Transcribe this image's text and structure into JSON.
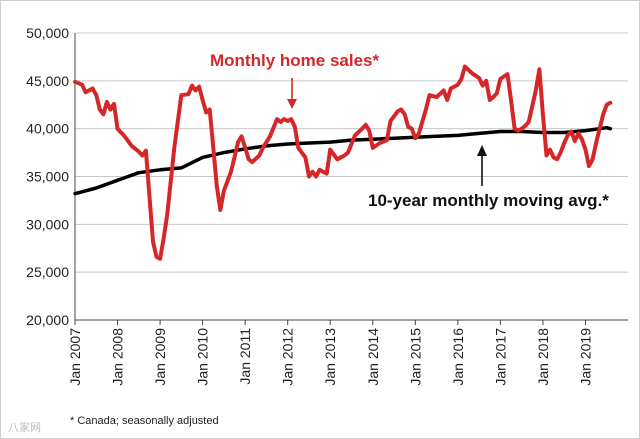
{
  "chart_data": {
    "type": "line",
    "ylim": [
      20000,
      50000
    ],
    "y_ticks": [
      20000,
      25000,
      30000,
      35000,
      40000,
      45000,
      50000
    ],
    "y_tick_labels": [
      "20,000",
      "25,000",
      "30,000",
      "35,000",
      "40,000",
      "45,000",
      "50,000"
    ],
    "x_ticks": [
      "Jan 2007",
      "Jan 2008",
      "Jan 2009",
      "Jan 2010",
      "Jan 2011",
      "Jan 2012",
      "Jan 2013",
      "Jan 2014",
      "Jan 2015",
      "Jan 2016",
      "Jan 2017",
      "Jan 2018",
      "Jan 2019"
    ],
    "grid": "horizontal",
    "series": [
      {
        "name": "Monthly home sales*",
        "color": "#d62728",
        "points": [
          [
            "2007-01",
            44900
          ],
          [
            "2007-03",
            44600
          ],
          [
            "2007-04",
            43800
          ],
          [
            "2007-06",
            44200
          ],
          [
            "2007-07",
            43500
          ],
          [
            "2007-08",
            42000
          ],
          [
            "2007-09",
            41500
          ],
          [
            "2007-10",
            42800
          ],
          [
            "2007-11",
            42000
          ],
          [
            "2007-12",
            42600
          ],
          [
            "2008-01",
            40000
          ],
          [
            "2008-03",
            39200
          ],
          [
            "2008-05",
            38200
          ],
          [
            "2008-07",
            37600
          ],
          [
            "2008-08",
            37200
          ],
          [
            "2008-09",
            37700
          ],
          [
            "2008-10",
            33000
          ],
          [
            "2008-11",
            28200
          ],
          [
            "2008-12",
            26600
          ],
          [
            "2009-01",
            26400
          ],
          [
            "2009-02",
            28500
          ],
          [
            "2009-03",
            31000
          ],
          [
            "2009-05",
            38000
          ],
          [
            "2009-07",
            43500
          ],
          [
            "2009-09",
            43600
          ],
          [
            "2009-10",
            44500
          ],
          [
            "2009-11",
            44000
          ],
          [
            "2009-12",
            44400
          ],
          [
            "2010-01",
            43000
          ],
          [
            "2010-02",
            41700
          ],
          [
            "2010-03",
            42000
          ],
          [
            "2010-04",
            38000
          ],
          [
            "2010-05",
            34000
          ],
          [
            "2010-06",
            31500
          ],
          [
            "2010-07",
            33500
          ],
          [
            "2010-09",
            35500
          ],
          [
            "2010-10",
            37000
          ],
          [
            "2010-11",
            38600
          ],
          [
            "2010-12",
            39200
          ],
          [
            "2011-01",
            38000
          ],
          [
            "2011-02",
            36800
          ],
          [
            "2011-03",
            36500
          ],
          [
            "2011-05",
            37200
          ],
          [
            "2011-06",
            38000
          ],
          [
            "2011-08",
            39200
          ],
          [
            "2011-10",
            41000
          ],
          [
            "2011-11",
            40700
          ],
          [
            "2011-12",
            41000
          ],
          [
            "2012-01",
            40800
          ],
          [
            "2012-02",
            41000
          ],
          [
            "2012-03",
            40200
          ],
          [
            "2012-04",
            38000
          ],
          [
            "2012-06",
            37000
          ],
          [
            "2012-07",
            35000
          ],
          [
            "2012-08",
            35500
          ],
          [
            "2012-09",
            35000
          ],
          [
            "2012-10",
            35700
          ],
          [
            "2012-12",
            35300
          ],
          [
            "2013-01",
            37800
          ],
          [
            "2013-03",
            36800
          ],
          [
            "2013-05",
            37200
          ],
          [
            "2013-06",
            37500
          ],
          [
            "2013-08",
            39300
          ],
          [
            "2013-10",
            40000
          ],
          [
            "2013-11",
            40400
          ],
          [
            "2013-12",
            39800
          ],
          [
            "2014-01",
            38000
          ],
          [
            "2014-03",
            38500
          ],
          [
            "2014-05",
            38800
          ],
          [
            "2014-06",
            40800
          ],
          [
            "2014-08",
            41800
          ],
          [
            "2014-09",
            42000
          ],
          [
            "2014-10",
            41500
          ],
          [
            "2014-11",
            40200
          ],
          [
            "2014-12",
            40000
          ],
          [
            "2015-01",
            39000
          ],
          [
            "2015-02",
            39500
          ],
          [
            "2015-04",
            42000
          ],
          [
            "2015-05",
            43500
          ],
          [
            "2015-07",
            43300
          ],
          [
            "2015-09",
            44000
          ],
          [
            "2015-10",
            43000
          ],
          [
            "2015-11",
            44200
          ],
          [
            "2016-01",
            44600
          ],
          [
            "2016-02",
            45200
          ],
          [
            "2016-03",
            46500
          ],
          [
            "2016-05",
            45800
          ],
          [
            "2016-07",
            45300
          ],
          [
            "2016-08",
            44500
          ],
          [
            "2016-09",
            45000
          ],
          [
            "2016-10",
            43000
          ],
          [
            "2016-11",
            43300
          ],
          [
            "2016-12",
            43700
          ],
          [
            "2017-01",
            45200
          ],
          [
            "2017-03",
            45700
          ],
          [
            "2017-04",
            43000
          ],
          [
            "2017-05",
            40000
          ],
          [
            "2017-06",
            39800
          ],
          [
            "2017-07",
            40000
          ],
          [
            "2017-08",
            40300
          ],
          [
            "2017-09",
            40700
          ],
          [
            "2017-11",
            44000
          ],
          [
            "2017-12",
            46200
          ],
          [
            "2018-01",
            41500
          ],
          [
            "2018-02",
            37200
          ],
          [
            "2018-03",
            37800
          ],
          [
            "2018-04",
            37000
          ],
          [
            "2018-05",
            36800
          ],
          [
            "2018-06",
            37500
          ],
          [
            "2018-07",
            38500
          ],
          [
            "2018-08",
            39300
          ],
          [
            "2018-09",
            39700
          ],
          [
            "2018-10",
            38700
          ],
          [
            "2018-11",
            39500
          ],
          [
            "2018-12",
            38900
          ],
          [
            "2019-01",
            37800
          ],
          [
            "2019-02",
            36100
          ],
          [
            "2019-03",
            36800
          ],
          [
            "2019-04",
            38500
          ],
          [
            "2019-05",
            40000
          ],
          [
            "2019-06",
            41500
          ],
          [
            "2019-07",
            42500
          ],
          [
            "2019-08",
            42700
          ]
        ]
      },
      {
        "name": "10-year monthly moving avg.*",
        "color": "#000000",
        "points": [
          [
            "2007-01",
            33200
          ],
          [
            "2007-07",
            33800
          ],
          [
            "2008-01",
            34600
          ],
          [
            "2008-07",
            35400
          ],
          [
            "2009-01",
            35700
          ],
          [
            "2009-07",
            35900
          ],
          [
            "2010-01",
            37000
          ],
          [
            "2010-07",
            37500
          ],
          [
            "2011-01",
            37900
          ],
          [
            "2011-07",
            38200
          ],
          [
            "2012-01",
            38400
          ],
          [
            "2012-07",
            38500
          ],
          [
            "2013-01",
            38600
          ],
          [
            "2013-07",
            38800
          ],
          [
            "2014-01",
            38900
          ],
          [
            "2014-07",
            39000
          ],
          [
            "2015-01",
            39100
          ],
          [
            "2015-07",
            39200
          ],
          [
            "2016-01",
            39300
          ],
          [
            "2016-07",
            39500
          ],
          [
            "2017-01",
            39700
          ],
          [
            "2017-07",
            39700
          ],
          [
            "2018-01",
            39600
          ],
          [
            "2018-07",
            39600
          ],
          [
            "2019-01",
            39800
          ],
          [
            "2019-07",
            40100
          ],
          [
            "2019-08",
            40000
          ]
        ]
      }
    ],
    "annotations": [
      {
        "text": "Monthly home sales*",
        "series": 0
      },
      {
        "text": "10-year monthly moving avg.*",
        "series": 1
      }
    ]
  },
  "footnote": "* Canada; seasonally adjusted",
  "watermark": "八家网"
}
